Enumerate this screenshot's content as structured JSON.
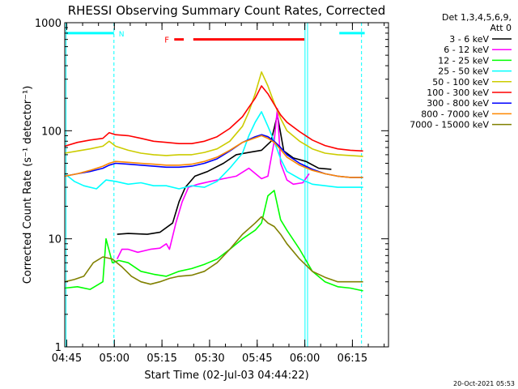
{
  "chart_data": {
    "type": "line",
    "title": "RHESSI Observing Summary Count Rates, Corrected",
    "xlabel": "Start Time (02-Jul-03 04:44:22)",
    "ylabel": "Corrected Count Rate (s⁻¹ detector⁻¹)",
    "yscale": "log",
    "ylim": [
      1,
      1000
    ],
    "xlim_minutes": [
      0,
      102
    ],
    "x_unit": "minutes after 04:44:22",
    "xticks": [
      {
        "t": 0.63,
        "label": "04:45"
      },
      {
        "t": 15.63,
        "label": "05:00"
      },
      {
        "t": 30.63,
        "label": "05:15"
      },
      {
        "t": 45.63,
        "label": "05:30"
      },
      {
        "t": 60.63,
        "label": "05:45"
      },
      {
        "t": 75.63,
        "label": "06:00"
      },
      {
        "t": 90.63,
        "label": "06:15"
      }
    ],
    "yticks": [
      {
        "v": 1,
        "label": "1"
      },
      {
        "v": 10,
        "label": "10"
      },
      {
        "v": 100,
        "label": "100"
      },
      {
        "v": 1000,
        "label": "1000"
      }
    ],
    "legend": {
      "position": "right",
      "header": [
        "Det 1,3,4,5,6,9,",
        "Att 0"
      ]
    },
    "series": [
      {
        "name": "3 - 6 keV",
        "color": "#000000",
        "points": [
          [
            16.5,
            11
          ],
          [
            20,
            11.2
          ],
          [
            26,
            11
          ],
          [
            30,
            11.5
          ],
          [
            34,
            14
          ],
          [
            36,
            22
          ],
          [
            38,
            30
          ],
          [
            41,
            38
          ],
          [
            45,
            42
          ],
          [
            50,
            50
          ],
          [
            54,
            60
          ],
          [
            58,
            63
          ],
          [
            62,
            66
          ],
          [
            65,
            80
          ],
          [
            67,
            140
          ],
          [
            69,
            65
          ],
          [
            72,
            56
          ],
          [
            76,
            52
          ],
          [
            80,
            45
          ],
          [
            84,
            44
          ]
        ]
      },
      {
        "name": "6 - 12 keV",
        "color": "#ff00ff",
        "points": [
          [
            16.5,
            6.5
          ],
          [
            18,
            8
          ],
          [
            20,
            8
          ],
          [
            23,
            7.5
          ],
          [
            27,
            8
          ],
          [
            30,
            8.2
          ],
          [
            32,
            9
          ],
          [
            33,
            8
          ],
          [
            35,
            14
          ],
          [
            37,
            22
          ],
          [
            39,
            30
          ],
          [
            42,
            32
          ],
          [
            46,
            34
          ],
          [
            50,
            36
          ],
          [
            54,
            38
          ],
          [
            58,
            45
          ],
          [
            62,
            36
          ],
          [
            64,
            38
          ],
          [
            66,
            80
          ],
          [
            67,
            160
          ],
          [
            68,
            50
          ],
          [
            70,
            35
          ],
          [
            72,
            32
          ],
          [
            75,
            33
          ],
          [
            77,
            40
          ]
        ]
      },
      {
        "name": "12 - 25 keV",
        "color": "#00ff00",
        "points": [
          [
            0,
            3.5
          ],
          [
            4,
            3.6
          ],
          [
            8,
            3.4
          ],
          [
            12,
            4
          ],
          [
            13,
            10
          ],
          [
            15,
            6
          ],
          [
            17,
            6.3
          ],
          [
            20,
            6
          ],
          [
            24,
            5
          ],
          [
            28,
            4.7
          ],
          [
            32,
            4.5
          ],
          [
            36,
            5
          ],
          [
            40,
            5.3
          ],
          [
            44,
            5.8
          ],
          [
            48,
            6.5
          ],
          [
            52,
            8
          ],
          [
            56,
            10
          ],
          [
            60,
            12
          ],
          [
            62,
            14
          ],
          [
            64,
            25
          ],
          [
            66,
            28
          ],
          [
            68,
            15
          ],
          [
            70,
            12
          ],
          [
            74,
            8
          ],
          [
            78,
            5
          ],
          [
            82,
            4
          ],
          [
            86,
            3.6
          ],
          [
            90,
            3.5
          ],
          [
            94,
            3.3
          ]
        ]
      },
      {
        "name": "25 - 50 keV",
        "color": "#00ffff",
        "points": [
          [
            0,
            40
          ],
          [
            3,
            34
          ],
          [
            6,
            31
          ],
          [
            10,
            29
          ],
          [
            13,
            35
          ],
          [
            16,
            34
          ],
          [
            20,
            32
          ],
          [
            24,
            33
          ],
          [
            28,
            31
          ],
          [
            32,
            31
          ],
          [
            36,
            29
          ],
          [
            40,
            31
          ],
          [
            44,
            30
          ],
          [
            48,
            34
          ],
          [
            52,
            45
          ],
          [
            56,
            62
          ],
          [
            58,
            90
          ],
          [
            60,
            120
          ],
          [
            62,
            150
          ],
          [
            64,
            110
          ],
          [
            66,
            80
          ],
          [
            68,
            55
          ],
          [
            70,
            42
          ],
          [
            74,
            36
          ],
          [
            78,
            32
          ],
          [
            82,
            31
          ],
          [
            86,
            30
          ],
          [
            90,
            30
          ],
          [
            94,
            30
          ]
        ]
      },
      {
        "name": "50 - 100 keV",
        "color": "#cccc00",
        "points": [
          [
            0,
            62
          ],
          [
            4,
            65
          ],
          [
            8,
            68
          ],
          [
            12,
            72
          ],
          [
            14,
            80
          ],
          [
            16,
            72
          ],
          [
            20,
            66
          ],
          [
            24,
            62
          ],
          [
            28,
            60
          ],
          [
            32,
            59
          ],
          [
            36,
            60
          ],
          [
            40,
            60
          ],
          [
            44,
            63
          ],
          [
            48,
            68
          ],
          [
            52,
            80
          ],
          [
            56,
            110
          ],
          [
            58,
            150
          ],
          [
            60,
            220
          ],
          [
            62,
            350
          ],
          [
            64,
            260
          ],
          [
            66,
            180
          ],
          [
            68,
            130
          ],
          [
            70,
            100
          ],
          [
            74,
            80
          ],
          [
            78,
            68
          ],
          [
            82,
            62
          ],
          [
            86,
            60
          ],
          [
            90,
            59
          ],
          [
            94,
            58
          ]
        ]
      },
      {
        "name": "100 - 300 keV",
        "color": "#ff0000",
        "points": [
          [
            0,
            72
          ],
          [
            4,
            78
          ],
          [
            8,
            82
          ],
          [
            12,
            85
          ],
          [
            14,
            96
          ],
          [
            16,
            92
          ],
          [
            20,
            90
          ],
          [
            24,
            85
          ],
          [
            28,
            80
          ],
          [
            32,
            78
          ],
          [
            36,
            76
          ],
          [
            40,
            76
          ],
          [
            44,
            80
          ],
          [
            48,
            88
          ],
          [
            52,
            105
          ],
          [
            56,
            135
          ],
          [
            58,
            165
          ],
          [
            60,
            200
          ],
          [
            62,
            260
          ],
          [
            64,
            220
          ],
          [
            66,
            175
          ],
          [
            68,
            140
          ],
          [
            70,
            120
          ],
          [
            74,
            98
          ],
          [
            78,
            82
          ],
          [
            82,
            73
          ],
          [
            86,
            68
          ],
          [
            90,
            66
          ],
          [
            94,
            65
          ]
        ]
      },
      {
        "name": "300 - 800 keV",
        "color": "#0000ff",
        "points": [
          [
            0,
            38
          ],
          [
            4,
            40
          ],
          [
            8,
            42
          ],
          [
            12,
            45
          ],
          [
            14,
            48
          ],
          [
            16,
            50
          ],
          [
            20,
            49
          ],
          [
            24,
            48
          ],
          [
            28,
            47
          ],
          [
            32,
            46
          ],
          [
            36,
            46
          ],
          [
            40,
            47
          ],
          [
            44,
            50
          ],
          [
            48,
            55
          ],
          [
            52,
            65
          ],
          [
            56,
            78
          ],
          [
            60,
            88
          ],
          [
            62,
            92
          ],
          [
            64,
            88
          ],
          [
            66,
            80
          ],
          [
            68,
            70
          ],
          [
            70,
            60
          ],
          [
            74,
            50
          ],
          [
            78,
            44
          ],
          [
            82,
            40
          ],
          [
            86,
            38
          ],
          [
            90,
            37
          ],
          [
            94,
            37
          ]
        ]
      },
      {
        "name": "800 - 7000 keV",
        "color": "#ff8800",
        "points": [
          [
            0,
            38
          ],
          [
            4,
            40
          ],
          [
            8,
            43
          ],
          [
            12,
            47
          ],
          [
            14,
            50
          ],
          [
            16,
            52
          ],
          [
            20,
            51
          ],
          [
            24,
            50
          ],
          [
            28,
            49
          ],
          [
            32,
            48
          ],
          [
            36,
            48
          ],
          [
            40,
            49
          ],
          [
            44,
            52
          ],
          [
            48,
            57
          ],
          [
            52,
            66
          ],
          [
            56,
            78
          ],
          [
            60,
            86
          ],
          [
            62,
            90
          ],
          [
            64,
            85
          ],
          [
            66,
            78
          ],
          [
            68,
            67
          ],
          [
            70,
            57
          ],
          [
            74,
            48
          ],
          [
            78,
            43
          ],
          [
            82,
            40
          ],
          [
            86,
            38
          ],
          [
            90,
            37
          ],
          [
            94,
            37
          ]
        ]
      },
      {
        "name": "7000 - 15000 keV",
        "color": "#808000",
        "points": [
          [
            0,
            4
          ],
          [
            3,
            4.2
          ],
          [
            6,
            4.5
          ],
          [
            9,
            6
          ],
          [
            12,
            6.8
          ],
          [
            15,
            6.5
          ],
          [
            18,
            5.5
          ],
          [
            21,
            4.5
          ],
          [
            24,
            4
          ],
          [
            27,
            3.8
          ],
          [
            30,
            4
          ],
          [
            33,
            4.3
          ],
          [
            36,
            4.5
          ],
          [
            40,
            4.6
          ],
          [
            44,
            5
          ],
          [
            48,
            6
          ],
          [
            52,
            8
          ],
          [
            56,
            11
          ],
          [
            60,
            14
          ],
          [
            62,
            16
          ],
          [
            64,
            14
          ],
          [
            66,
            13
          ],
          [
            68,
            11
          ],
          [
            70,
            9
          ],
          [
            74,
            6.5
          ],
          [
            78,
            5
          ],
          [
            82,
            4.4
          ],
          [
            86,
            4
          ],
          [
            90,
            4
          ],
          [
            94,
            4
          ]
        ]
      }
    ],
    "annotations": [
      {
        "label": "N",
        "type": "night",
        "t0": 0.5,
        "t1": 15.5,
        "t2": 86.5,
        "t3": 94.5,
        "level": 800,
        "color": "#00ffff"
      },
      {
        "label": "F",
        "type": "flare",
        "segments": [
          [
            34.5,
            37.5
          ],
          [
            40.5,
            75.5
          ]
        ],
        "level": 700,
        "color": "#ff0000"
      },
      {
        "type": "vline",
        "t": 15.5,
        "color": "#00ffff",
        "dashed": true
      },
      {
        "type": "vline",
        "t": 75.7,
        "color": "#00ffff",
        "dashed": false
      },
      {
        "type": "vline",
        "t": 76.5,
        "color": "#00ffff",
        "dashed": false
      },
      {
        "type": "vline",
        "t": 93.5,
        "color": "#00ffff",
        "dashed": true
      },
      {
        "type": "vline",
        "t": 0.4,
        "color": "#00ffff",
        "dashed": false
      }
    ],
    "footer": "20-Oct-2021 05:53"
  }
}
